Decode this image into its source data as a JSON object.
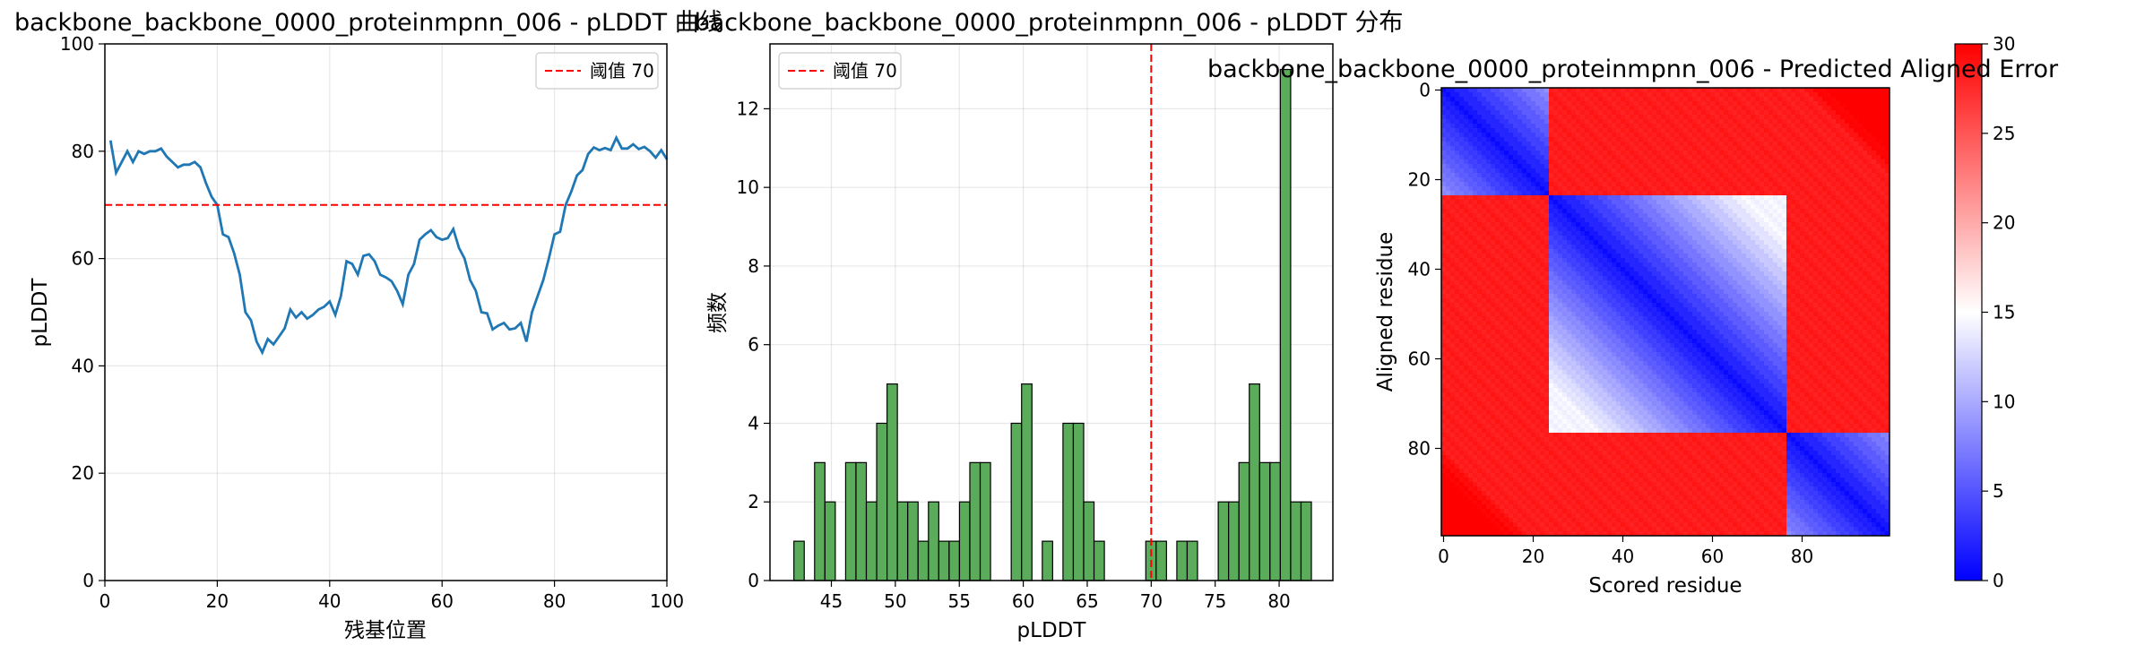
{
  "chart_data": [
    {
      "type": "line",
      "title": "backbone_backbone_0000_proteinmpnn_006 - pLDDT 曲线",
      "xlabel": "残基位置",
      "ylabel": "pLDDT",
      "xlim": [
        0,
        100
      ],
      "ylim": [
        0,
        100
      ],
      "xticks": [
        0,
        20,
        40,
        60,
        80,
        100
      ],
      "yticks": [
        0,
        20,
        40,
        60,
        80,
        100
      ],
      "grid": true,
      "legend_position": "top-right",
      "threshold": {
        "value": 70,
        "label": "阈值 70",
        "color": "#ff0000"
      },
      "series": [
        {
          "color": "#1f77b4",
          "x": [
            1,
            2,
            3,
            4,
            5,
            6,
            7,
            8,
            9,
            10,
            11,
            12,
            13,
            14,
            15,
            16,
            17,
            18,
            19,
            20,
            21,
            22,
            23,
            24,
            25,
            26,
            27,
            28,
            29,
            30,
            31,
            32,
            33,
            34,
            35,
            36,
            37,
            38,
            39,
            40,
            41,
            42,
            43,
            44,
            45,
            46,
            47,
            48,
            49,
            50,
            51,
            52,
            53,
            54,
            55,
            56,
            57,
            58,
            59,
            60,
            61,
            62,
            63,
            64,
            65,
            66,
            67,
            68,
            69,
            70,
            71,
            72,
            73,
            74,
            75,
            76,
            77,
            78,
            79,
            80,
            81,
            82,
            83,
            84,
            85,
            86,
            87,
            88,
            89,
            90,
            91,
            92,
            93,
            94,
            95,
            96,
            97,
            98,
            99,
            100
          ],
          "values": [
            82,
            76,
            78,
            80,
            78,
            80,
            79.5,
            80,
            80,
            80.5,
            79,
            78,
            77,
            77.5,
            77.5,
            78,
            77,
            74,
            71.5,
            70,
            64.5,
            64,
            61,
            57,
            50,
            48.5,
            44.5,
            42.5,
            45,
            44,
            45.5,
            47,
            50.5,
            49,
            50,
            48.8,
            49.5,
            50.5,
            51,
            52,
            49.5,
            53,
            59.5,
            59,
            57,
            60.5,
            60.8,
            59.5,
            57,
            56.5,
            55.8,
            54,
            51.5,
            57,
            59,
            63.5,
            64.5,
            65.3,
            64,
            63.5,
            63.8,
            65.5,
            62,
            60,
            56,
            54,
            50,
            49.8,
            46.8,
            47.5,
            48,
            46.8,
            47,
            48,
            44.5,
            50,
            53,
            56,
            60,
            64.5,
            65,
            70,
            72.5,
            75.5,
            76.5,
            79.5,
            80.7,
            80.2,
            80.6,
            80.2,
            82.5,
            80.5,
            80.5,
            81.3,
            80.4,
            80.8,
            80,
            78.8,
            80.2,
            78.5
          ]
        }
      ]
    },
    {
      "type": "bar",
      "title": "backbone_backbone_0000_proteinmpnn_006 - pLDDT 分布",
      "xlabel": "pLDDT",
      "ylabel": "频数",
      "xlim": [
        40.2,
        84.2
      ],
      "ylim": [
        0,
        13.65
      ],
      "xticks": [
        45,
        50,
        55,
        60,
        65,
        70,
        75,
        80
      ],
      "yticks": [
        0,
        2,
        4,
        6,
        8,
        10,
        12
      ],
      "grid": true,
      "legend_position": "top-left",
      "threshold": {
        "value": 70,
        "label": "阈值 70",
        "color": "#ff0000"
      },
      "bar_color": "#5aab5a",
      "bin_start": 42.07,
      "bin_width": 0.809,
      "values": [
        1,
        0,
        3,
        2,
        0,
        3,
        3,
        2,
        4,
        5,
        2,
        2,
        1,
        2,
        1,
        1,
        2,
        3,
        3,
        0,
        0,
        4,
        5,
        0,
        1,
        0,
        4,
        4,
        2,
        1,
        0,
        0,
        0,
        0,
        1,
        1,
        0,
        1,
        1,
        0,
        0,
        2,
        2,
        3,
        5,
        3,
        3,
        13,
        2,
        2
      ]
    },
    {
      "type": "heatmap",
      "title": "backbone_backbone_0000_proteinmpnn_006 - Predicted Aligned Error",
      "xlabel": "Scored residue",
      "ylabel": "Aligned residue",
      "size": 100,
      "xticks": [
        0,
        20,
        40,
        60,
        80
      ],
      "yticks": [
        0,
        20,
        40,
        60,
        80
      ],
      "colormap": "bwr",
      "colorbar": {
        "min": 0,
        "max": 30,
        "ticks": [
          0,
          5,
          10,
          15,
          20,
          25,
          30
        ]
      },
      "domains": [
        {
          "start": 0,
          "end": 23
        },
        {
          "start": 24,
          "end": 76
        },
        {
          "start": 77,
          "end": 99
        }
      ],
      "diagonal_band": {
        "center_error": 0.5,
        "slope_per_residue": 0.32
      }
    }
  ]
}
